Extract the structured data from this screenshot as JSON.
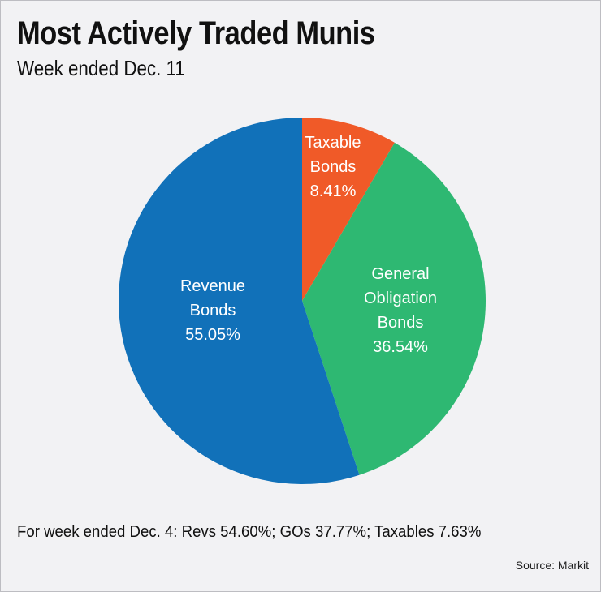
{
  "chart_data": {
    "type": "pie",
    "title": "Most Actively Traded Munis",
    "subtitle": "Week ended Dec. 11",
    "categories": [
      "Taxable Bonds",
      "General Obligation Bonds",
      "Revenue Bonds"
    ],
    "values": [
      8.41,
      36.54,
      55.05
    ],
    "value_labels": [
      "8.41%",
      "36.54%",
      "55.05%"
    ],
    "colors": [
      "#f05a28",
      "#2eb872",
      "#1171b9"
    ],
    "note": "For week ended Dec. 4: Revs 54.60%; GOs 37.77%; Taxables 7.63%",
    "source": "Source: Markit"
  }
}
